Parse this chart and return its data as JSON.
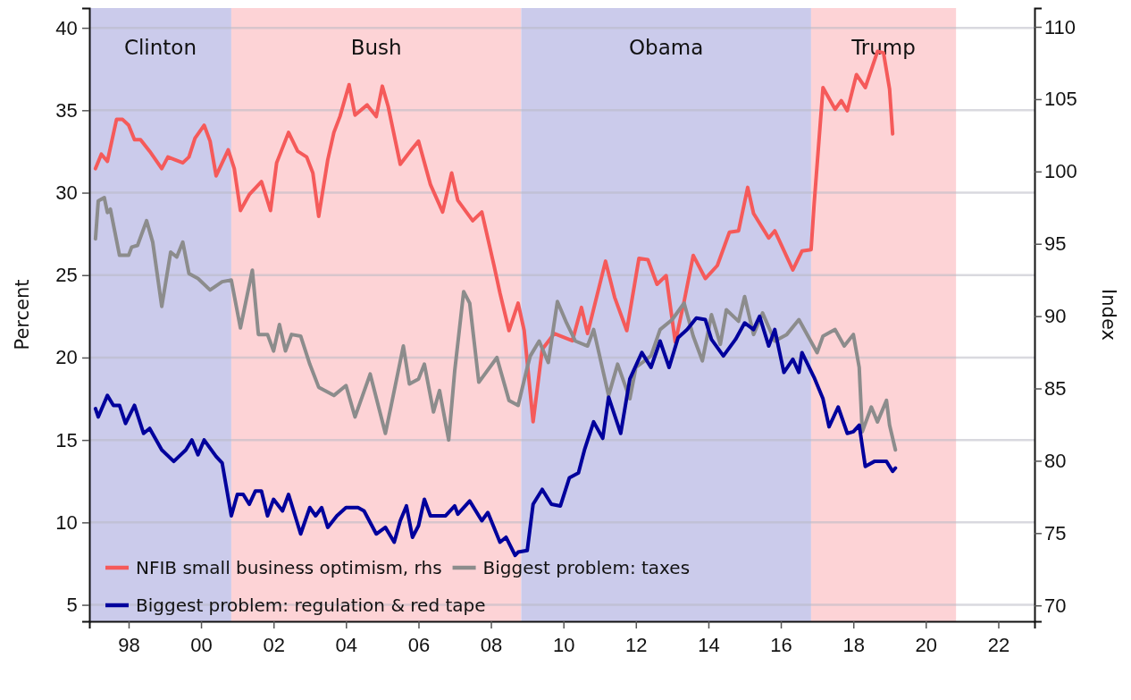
{
  "chart_data": {
    "type": "line",
    "xlim": [
      "1996-12",
      "2023-01"
    ],
    "xticks": [
      {
        "value": "1998-01",
        "label": "98"
      },
      {
        "value": "2000-01",
        "label": "00"
      },
      {
        "value": "2002-01",
        "label": "02"
      },
      {
        "value": "2004-01",
        "label": "04"
      },
      {
        "value": "2006-01",
        "label": "06"
      },
      {
        "value": "2008-01",
        "label": "08"
      },
      {
        "value": "2010-01",
        "label": "10"
      },
      {
        "value": "2012-01",
        "label": "12"
      },
      {
        "value": "2014-01",
        "label": "14"
      },
      {
        "value": "2016-01",
        "label": "16"
      },
      {
        "value": "2018-01",
        "label": "18"
      },
      {
        "value": "2020-01",
        "label": "20"
      },
      {
        "value": "2022-01",
        "label": "22"
      }
    ],
    "ylim": [
      4,
      41.2
    ],
    "yticks": [
      5,
      10,
      15,
      20,
      25,
      30,
      35,
      40
    ],
    "y2lim": [
      68.9,
      111.3
    ],
    "y2ticks": [
      70,
      75,
      80,
      85,
      90,
      95,
      100,
      105,
      110
    ],
    "ylabel": "Percent",
    "y2label": "Index",
    "grid": "y",
    "legend": "bottom left",
    "line_style": "solid",
    "marker": "none",
    "bands": [
      {
        "axis": "x",
        "from": "1996-12",
        "to": "2000-11",
        "label": "Clinton",
        "color": "#cbcbeb"
      },
      {
        "axis": "x",
        "from": "2000-11",
        "to": "2008-11",
        "label": "Bush",
        "color": "#fdd3d6"
      },
      {
        "axis": "x",
        "from": "2008-11",
        "to": "2016-11",
        "label": "Obama",
        "color": "#cbcbeb"
      },
      {
        "axis": "x",
        "from": "2016-11",
        "to": "2020-11",
        "label": "Trump",
        "color": "#fdd3d6"
      }
    ],
    "series": [
      {
        "name": "NFIB small business optimism, rhs",
        "color": "#f55a5a",
        "axis": "y2",
        "x": [
          "1997-02",
          "1997-04",
          "1997-06",
          "1997-09",
          "1997-11",
          "1998-01",
          "1998-03",
          "1998-05",
          "1998-08",
          "1998-12",
          "1999-02",
          "1999-07",
          "1999-09",
          "1999-11",
          "2000-02",
          "2000-04",
          "2000-06",
          "2000-10",
          "2000-12",
          "2001-02",
          "2001-05",
          "2001-09",
          "2001-12",
          "2002-02",
          "2002-06",
          "2002-09",
          "2002-12",
          "2003-02",
          "2003-04",
          "2003-07",
          "2003-09",
          "2003-11",
          "2004-02",
          "2004-04",
          "2004-08",
          "2004-11",
          "2005-01",
          "2005-03",
          "2005-07",
          "2005-11",
          "2006-01",
          "2006-05",
          "2006-09",
          "2006-12",
          "2007-02",
          "2007-07",
          "2007-10",
          "2008-02",
          "2008-04",
          "2008-07",
          "2008-10",
          "2008-12",
          "2009-03",
          "2009-06",
          "2009-10",
          "2010-04",
          "2010-07",
          "2010-09",
          "2011-03",
          "2011-06",
          "2011-10",
          "2012-02",
          "2012-05",
          "2012-08",
          "2012-11",
          "2013-02",
          "2013-05",
          "2013-08",
          "2013-12",
          "2014-04",
          "2014-08",
          "2014-11",
          "2015-02",
          "2015-04",
          "2015-09",
          "2015-11",
          "2016-05",
          "2016-08",
          "2016-11",
          "2016-12",
          "2017-03",
          "2017-07",
          "2017-09",
          "2017-11",
          "2018-02",
          "2018-05",
          "2018-09",
          "2018-11",
          "2019-01",
          "2019-02"
        ],
        "values": [
          100.2,
          101.2,
          100.7,
          103.6,
          103.6,
          103.2,
          102.2,
          102.2,
          101.4,
          100.2,
          101.0,
          100.6,
          101.0,
          102.3,
          103.2,
          102.1,
          99.7,
          101.5,
          100.2,
          97.3,
          98.4,
          99.3,
          97.3,
          100.6,
          102.7,
          101.4,
          101.0,
          99.9,
          96.9,
          100.8,
          102.7,
          103.8,
          106.0,
          103.9,
          104.6,
          103.8,
          105.9,
          104.5,
          100.5,
          101.6,
          102.1,
          99.1,
          97.2,
          99.9,
          98.0,
          96.6,
          97.2,
          93.5,
          91.6,
          89.0,
          90.9,
          89.0,
          82.7,
          87.7,
          88.8,
          88.3,
          90.6,
          88.8,
          93.8,
          91.3,
          89.0,
          94.0,
          93.9,
          92.2,
          92.8,
          88.2,
          91.0,
          94.2,
          92.6,
          93.5,
          95.8,
          95.9,
          98.9,
          97.1,
          95.4,
          95.9,
          93.2,
          94.5,
          94.6,
          97.7,
          105.8,
          104.3,
          104.9,
          104.2,
          106.7,
          105.8,
          108.3,
          108.2,
          105.7,
          102.6
        ]
      },
      {
        "name": "Biggest problem: taxes",
        "color": "#8c8c8c",
        "x": [
          "1997-02",
          "1997-03",
          "1997-05",
          "1997-06",
          "1997-07",
          "1997-10",
          "1998-01",
          "1998-02",
          "1998-04",
          "1998-07",
          "1998-09",
          "1998-12",
          "1999-03",
          "1999-05",
          "1999-07",
          "1999-09",
          "1999-12",
          "2000-04",
          "2000-08",
          "2000-11",
          "2001-02",
          "2001-06",
          "2001-08",
          "2001-11",
          "2002-01",
          "2002-03",
          "2002-05",
          "2002-07",
          "2002-10",
          "2003-01",
          "2003-04",
          "2003-09",
          "2004-01",
          "2004-04",
          "2004-09",
          "2005-02",
          "2005-04",
          "2005-08",
          "2005-10",
          "2006-01",
          "2006-03",
          "2006-06",
          "2006-08",
          "2006-11",
          "2007-01",
          "2007-04",
          "2007-06",
          "2007-09",
          "2008-03",
          "2008-07",
          "2008-10",
          "2009-01",
          "2009-02",
          "2009-05",
          "2009-08",
          "2009-11",
          "2010-02",
          "2010-05",
          "2010-09",
          "2010-11",
          "2011-04",
          "2011-07",
          "2011-11",
          "2012-01",
          "2012-06",
          "2012-09",
          "2013-01",
          "2013-05",
          "2013-08",
          "2013-11",
          "2014-02",
          "2014-05",
          "2014-07",
          "2014-11",
          "2015-01",
          "2015-04",
          "2015-07",
          "2015-11",
          "2016-03",
          "2016-07",
          "2016-10",
          "2017-01",
          "2017-03",
          "2017-07",
          "2017-10",
          "2018-01",
          "2018-03",
          "2018-04",
          "2018-07",
          "2018-09",
          "2018-12",
          "2019-01",
          "2019-03"
        ],
        "values": [
          27.2,
          29.5,
          29.7,
          28.8,
          29.0,
          26.2,
          26.2,
          26.7,
          26.8,
          28.3,
          27.0,
          23.1,
          26.4,
          26.1,
          27.0,
          25.1,
          24.8,
          24.1,
          24.6,
          24.7,
          21.8,
          25.3,
          21.4,
          21.4,
          20.4,
          22.0,
          20.4,
          21.4,
          21.3,
          19.6,
          18.2,
          17.7,
          18.3,
          16.4,
          19.0,
          15.4,
          17.1,
          20.7,
          18.4,
          18.7,
          19.6,
          16.7,
          18.0,
          15.0,
          19.2,
          24.0,
          23.3,
          18.5,
          20.0,
          17.4,
          17.1,
          19.4,
          20.1,
          21.0,
          19.7,
          23.4,
          22.1,
          21.0,
          20.7,
          21.7,
          17.7,
          19.6,
          17.5,
          19.4,
          20.1,
          21.7,
          22.3,
          23.3,
          21.3,
          19.8,
          22.6,
          20.8,
          22.9,
          22.2,
          23.7,
          21.4,
          22.7,
          21.0,
          21.4,
          22.3,
          21.3,
          20.3,
          21.3,
          21.7,
          20.7,
          21.4,
          19.4,
          15.5,
          17.0,
          16.1,
          17.4,
          15.9,
          14.4
        ]
      },
      {
        "name": "Biggest problem: regulation & red tape",
        "color": "#00009c",
        "x": [
          "1997-02",
          "1997-03",
          "1997-06",
          "1997-08",
          "1997-10",
          "1997-12",
          "1998-03",
          "1998-06",
          "1998-08",
          "1998-12",
          "1999-04",
          "1999-08",
          "1999-10",
          "1999-12",
          "2000-02",
          "2000-06",
          "2000-08",
          "2000-11",
          "2001-01",
          "2001-03",
          "2001-05",
          "2001-07",
          "2001-09",
          "2001-11",
          "2002-01",
          "2002-04",
          "2002-06",
          "2002-10",
          "2003-01",
          "2003-03",
          "2003-05",
          "2003-07",
          "2003-10",
          "2004-01",
          "2004-05",
          "2004-07",
          "2004-11",
          "2005-02",
          "2005-05",
          "2005-07",
          "2005-09",
          "2005-11",
          "2006-01",
          "2006-03",
          "2006-05",
          "2006-10",
          "2007-01",
          "2007-02",
          "2007-06",
          "2007-10",
          "2007-12",
          "2008-04",
          "2008-06",
          "2008-09",
          "2008-10",
          "2009-01",
          "2009-03",
          "2009-06",
          "2009-09",
          "2009-12",
          "2010-03",
          "2010-06",
          "2010-08",
          "2010-11",
          "2011-02",
          "2011-04",
          "2011-08",
          "2011-11",
          "2012-03",
          "2012-06",
          "2012-09",
          "2012-12",
          "2013-03",
          "2013-06",
          "2013-09",
          "2013-12",
          "2014-02",
          "2014-06",
          "2014-10",
          "2015-01",
          "2015-04",
          "2015-06",
          "2015-09",
          "2015-11",
          "2016-02",
          "2016-05",
          "2016-07",
          "2016-08",
          "2016-12",
          "2017-03",
          "2017-05",
          "2017-08",
          "2017-11",
          "2018-01",
          "2018-03",
          "2018-05",
          "2018-08",
          "2018-12",
          "2019-02",
          "2019-03"
        ],
        "values": [
          16.9,
          16.4,
          17.7,
          17.1,
          17.1,
          16.0,
          17.1,
          15.4,
          15.7,
          14.4,
          13.7,
          14.4,
          15.0,
          14.1,
          15.0,
          14.0,
          13.6,
          10.4,
          11.7,
          11.7,
          11.1,
          11.9,
          11.9,
          10.4,
          11.4,
          10.7,
          11.7,
          9.3,
          10.9,
          10.4,
          10.9,
          9.7,
          10.4,
          10.9,
          10.9,
          10.7,
          9.3,
          9.7,
          8.8,
          10.1,
          11.0,
          9.1,
          9.8,
          11.4,
          10.4,
          10.4,
          11.0,
          10.5,
          11.3,
          10.1,
          10.6,
          8.8,
          9.1,
          8.0,
          8.2,
          8.3,
          11.1,
          12.0,
          11.1,
          11.0,
          12.7,
          13.0,
          14.4,
          16.1,
          15.1,
          17.6,
          15.4,
          18.7,
          20.3,
          19.4,
          21.0,
          19.4,
          21.2,
          21.7,
          22.4,
          22.3,
          21.1,
          20.1,
          21.1,
          22.1,
          21.7,
          22.5,
          20.7,
          21.7,
          19.1,
          19.9,
          19.1,
          20.3,
          18.8,
          17.5,
          15.8,
          17.0,
          15.4,
          15.5,
          15.9,
          13.4,
          13.7,
          13.7,
          13.1,
          13.3
        ]
      }
    ]
  }
}
